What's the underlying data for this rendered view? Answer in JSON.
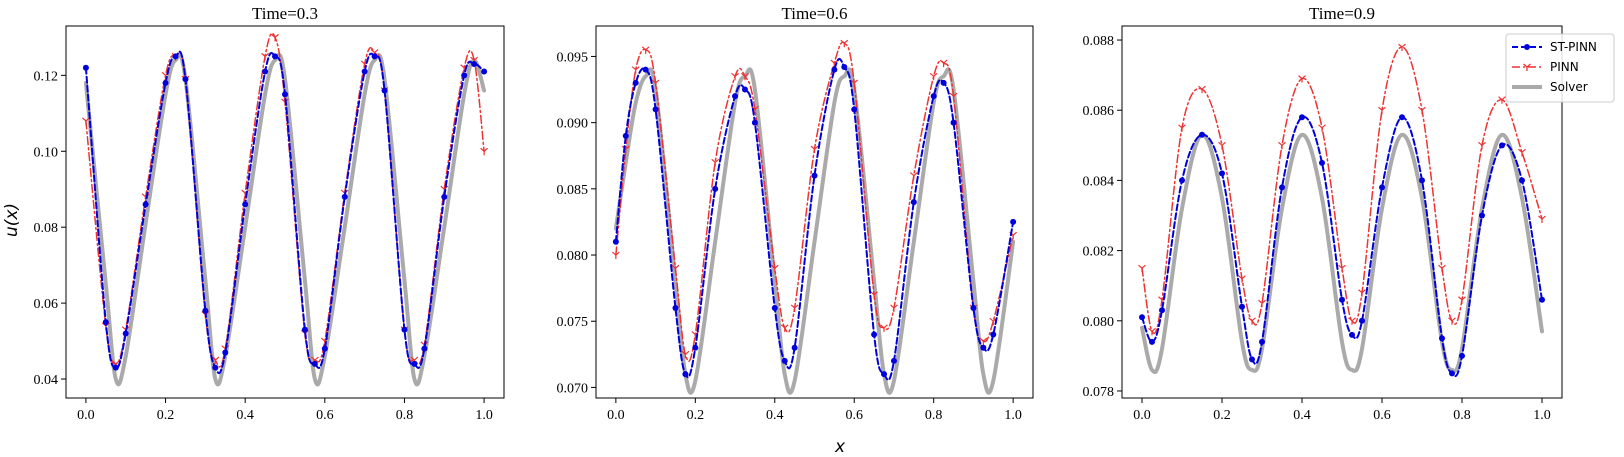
{
  "figure": {
    "xlabel": "x",
    "ylabel": "u(x)"
  },
  "legend": {
    "placement": "top-right of third panel",
    "entries": [
      {
        "label": "ST-PINN",
        "color": "#0000dd",
        "style": "dashed-dot-markers"
      },
      {
        "label": "PINN",
        "color": "#ee3333",
        "style": "dashdot-tri-markers"
      },
      {
        "label": "Solver",
        "color": "#aaaaaa",
        "style": "solid-thick"
      }
    ]
  },
  "chart_data": [
    {
      "type": "line",
      "title": "Time=0.3",
      "xlim": [
        -0.05,
        1.05
      ],
      "ylim": [
        0.035,
        0.133
      ],
      "xticks": [
        "0.0",
        "0.2",
        "0.4",
        "0.6",
        "0.8",
        "1.0"
      ],
      "yticks": [
        "0.04",
        "0.06",
        "0.08",
        "0.10",
        "0.12"
      ],
      "x": [
        0.0,
        0.05,
        0.075,
        0.1,
        0.15,
        0.2,
        0.225,
        0.25,
        0.3,
        0.325,
        0.35,
        0.4,
        0.45,
        0.475,
        0.5,
        0.55,
        0.575,
        0.6,
        0.65,
        0.7,
        0.725,
        0.75,
        0.8,
        0.825,
        0.85,
        0.9,
        0.95,
        0.975,
        1.0
      ],
      "series": [
        {
          "name": "ST-PINN",
          "values": [
            0.122,
            0.055,
            0.043,
            0.052,
            0.086,
            0.118,
            0.125,
            0.119,
            0.058,
            0.043,
            0.047,
            0.086,
            0.121,
            0.125,
            0.115,
            0.053,
            0.044,
            0.048,
            0.088,
            0.121,
            0.125,
            0.116,
            0.053,
            0.044,
            0.048,
            0.088,
            0.12,
            0.123,
            0.121
          ]
        },
        {
          "name": "PINN",
          "values": [
            0.108,
            0.054,
            0.044,
            0.053,
            0.088,
            0.12,
            0.125,
            0.119,
            0.057,
            0.045,
            0.048,
            0.089,
            0.125,
            0.13,
            0.113,
            0.052,
            0.045,
            0.05,
            0.089,
            0.123,
            0.126,
            0.116,
            0.053,
            0.045,
            0.049,
            0.09,
            0.122,
            0.124,
            0.1
          ]
        },
        {
          "name": "Solver",
          "values": [
            0.118,
            0.065,
            0.04,
            0.046,
            0.081,
            0.115,
            0.124,
            0.119,
            0.066,
            0.04,
            0.046,
            0.08,
            0.115,
            0.124,
            0.119,
            0.066,
            0.04,
            0.046,
            0.08,
            0.115,
            0.124,
            0.119,
            0.066,
            0.04,
            0.046,
            0.08,
            0.115,
            0.124,
            0.116
          ]
        }
      ]
    },
    {
      "type": "line",
      "title": "Time=0.6",
      "xlim": [
        -0.05,
        1.05
      ],
      "ylim": [
        0.0692,
        0.0973
      ],
      "xticks": [
        "0.0",
        "0.2",
        "0.4",
        "0.6",
        "0.8",
        "1.0"
      ],
      "yticks": [
        "0.070",
        "0.075",
        "0.080",
        "0.085",
        "0.090",
        "0.095"
      ],
      "x": [
        0.0,
        0.025,
        0.05,
        0.075,
        0.1,
        0.15,
        0.175,
        0.2,
        0.25,
        0.3,
        0.325,
        0.35,
        0.4,
        0.425,
        0.45,
        0.5,
        0.55,
        0.575,
        0.6,
        0.65,
        0.675,
        0.7,
        0.75,
        0.8,
        0.825,
        0.85,
        0.9,
        0.925,
        0.95,
        1.0
      ],
      "series": [
        {
          "name": "ST-PINN",
          "values": [
            0.081,
            0.089,
            0.093,
            0.094,
            0.091,
            0.076,
            0.071,
            0.073,
            0.085,
            0.092,
            0.0925,
            0.09,
            0.076,
            0.072,
            0.073,
            0.086,
            0.094,
            0.0942,
            0.091,
            0.074,
            0.071,
            0.072,
            0.084,
            0.092,
            0.093,
            0.09,
            0.076,
            0.073,
            0.074,
            0.0825
          ]
        },
        {
          "name": "PINN",
          "values": [
            0.08,
            0.088,
            0.094,
            0.0955,
            0.093,
            0.079,
            0.0725,
            0.074,
            0.087,
            0.0935,
            0.0935,
            0.091,
            0.079,
            0.0745,
            0.076,
            0.088,
            0.0945,
            0.096,
            0.093,
            0.077,
            0.0745,
            0.076,
            0.086,
            0.0935,
            0.0945,
            0.092,
            0.076,
            0.0735,
            0.075,
            0.0815
          ]
        },
        {
          "name": "Solver",
          "values": [
            0.082,
            0.087,
            0.0915,
            0.0935,
            0.0925,
            0.078,
            0.071,
            0.0705,
            0.081,
            0.0915,
            0.0935,
            0.0925,
            0.078,
            0.071,
            0.0705,
            0.081,
            0.0915,
            0.0935,
            0.0925,
            0.078,
            0.071,
            0.0705,
            0.081,
            0.0915,
            0.0935,
            0.0925,
            0.078,
            0.071,
            0.0705,
            0.081
          ]
        }
      ]
    },
    {
      "type": "line",
      "title": "Time=0.9",
      "xlim": [
        -0.05,
        1.05
      ],
      "ylim": [
        0.0778,
        0.0884
      ],
      "xticks": [
        "0.0",
        "0.2",
        "0.4",
        "0.6",
        "0.8",
        "1.0"
      ],
      "yticks": [
        "0.078",
        "0.080",
        "0.082",
        "0.084",
        "0.086",
        "0.088"
      ],
      "x": [
        0.0,
        0.025,
        0.05,
        0.1,
        0.15,
        0.2,
        0.25,
        0.275,
        0.3,
        0.35,
        0.4,
        0.45,
        0.5,
        0.525,
        0.55,
        0.6,
        0.65,
        0.7,
        0.75,
        0.775,
        0.8,
        0.85,
        0.9,
        0.95,
        1.0
      ],
      "series": [
        {
          "name": "ST-PINN",
          "values": [
            0.0801,
            0.0794,
            0.0803,
            0.084,
            0.0853,
            0.0842,
            0.0804,
            0.0789,
            0.0794,
            0.0838,
            0.0858,
            0.0845,
            0.0806,
            0.0796,
            0.08,
            0.0838,
            0.0858,
            0.084,
            0.0795,
            0.0785,
            0.079,
            0.083,
            0.085,
            0.084,
            0.0806
          ]
        },
        {
          "name": "PINN",
          "values": [
            0.0815,
            0.0797,
            0.0806,
            0.0855,
            0.0866,
            0.085,
            0.0812,
            0.08,
            0.0805,
            0.085,
            0.0869,
            0.0855,
            0.0815,
            0.08,
            0.0808,
            0.086,
            0.0878,
            0.086,
            0.0815,
            0.08,
            0.0806,
            0.085,
            0.0863,
            0.0848,
            0.0829
          ]
        },
        {
          "name": "Solver",
          "values": [
            0.0798,
            0.0786,
            0.0792,
            0.0832,
            0.0853,
            0.0835,
            0.0794,
            0.0786,
            0.0792,
            0.0832,
            0.0853,
            0.0835,
            0.0794,
            0.0786,
            0.0792,
            0.0832,
            0.0853,
            0.0835,
            0.0794,
            0.0786,
            0.0792,
            0.0832,
            0.0853,
            0.0835,
            0.0797
          ]
        }
      ]
    }
  ]
}
